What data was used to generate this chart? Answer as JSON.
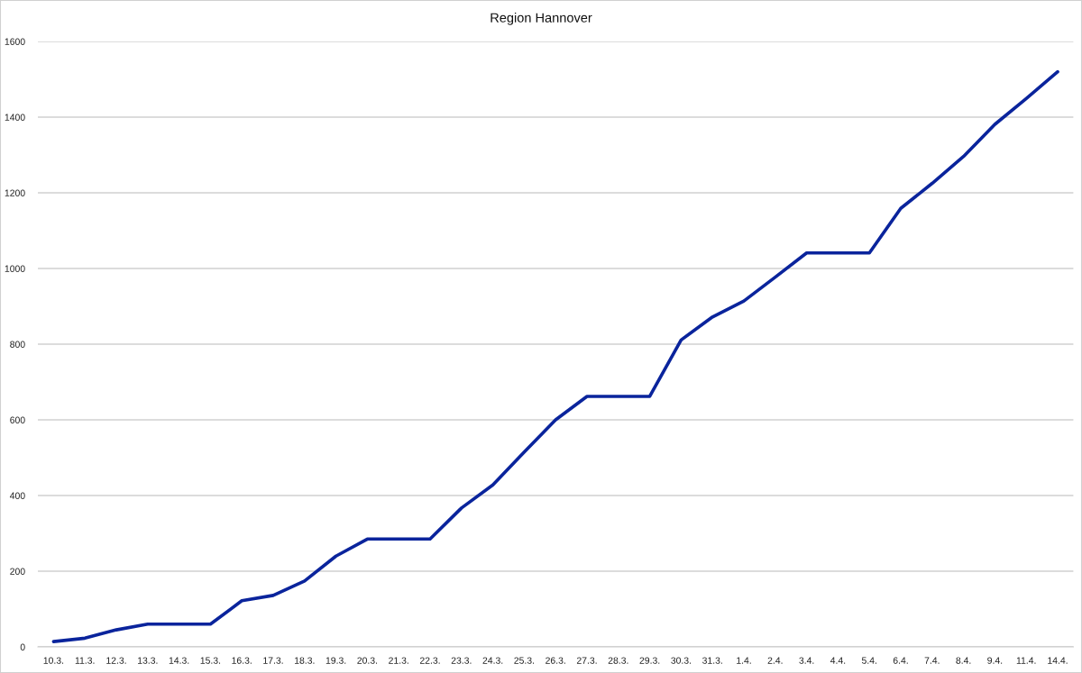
{
  "chart_data": {
    "type": "line",
    "title": "Region Hannover",
    "categories": [
      "10.3.",
      "11.3.",
      "12.3.",
      "13.3.",
      "14.3.",
      "15.3.",
      "16.3.",
      "17.3.",
      "18.3.",
      "19.3.",
      "20.3.",
      "21.3.",
      "22.3.",
      "23.3.",
      "24.3.",
      "25.3.",
      "26.3.",
      "27.3.",
      "28.3.",
      "29.3.",
      "30.3.",
      "31.3.",
      "1.4.",
      "2.4.",
      "3.4.",
      "4.4.",
      "5.4.",
      "6.4.",
      "7.4.",
      "8.4.",
      "9.4.",
      "11.4.",
      "14.4."
    ],
    "series": [
      {
        "color": "#0a249c",
        "values": [
          14,
          23,
          45,
          60,
          60,
          60,
          122,
          136,
          174,
          240,
          285,
          285,
          285,
          367,
          428,
          515,
          600,
          662,
          662,
          662,
          811,
          872,
          914,
          977,
          1041,
          1041,
          1041,
          1159,
          1225,
          1296,
          1381,
          1449,
          1520
        ]
      }
    ],
    "ylim": [
      0,
      1600
    ],
    "yticks": [
      0,
      200,
      400,
      600,
      800,
      1000,
      1200,
      1400,
      1600
    ],
    "grid": "y",
    "marker": "none",
    "line_style": "solid"
  }
}
